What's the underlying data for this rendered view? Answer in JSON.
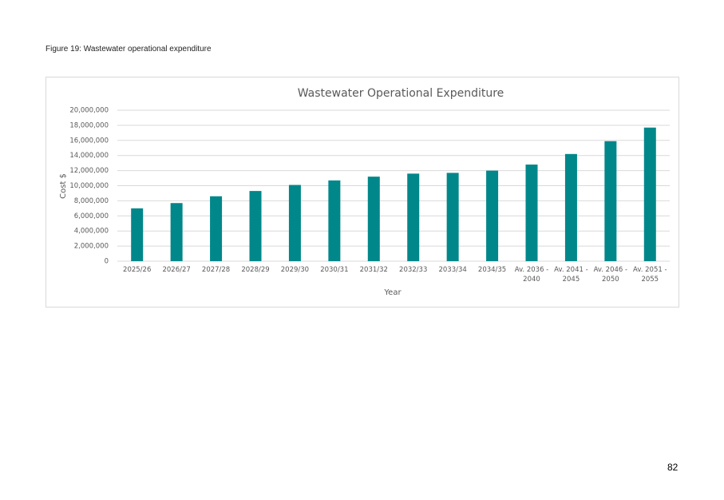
{
  "caption": "Figure 19: Wastewater operational expenditure",
  "page_number": "82",
  "chart_data": {
    "type": "bar",
    "title": "Wastewater Operational Expenditure",
    "x_label": "Year",
    "y_label": "Cost $",
    "categories": [
      "2025/26",
      "2026/27",
      "2027/28",
      "2028/29",
      "2029/30",
      "2030/31",
      "2031/32",
      "2032/33",
      "2033/34",
      "2034/35",
      "Av. 2036 - 2040",
      "Av. 2041 - 2045",
      "Av. 2046 - 2050",
      "Av. 2051 - 2055"
    ],
    "values": [
      7000000,
      7700000,
      8600000,
      9300000,
      10100000,
      10700000,
      11200000,
      11600000,
      11700000,
      12000000,
      12800000,
      14200000,
      15900000,
      17700000
    ],
    "color": "#00878a",
    "ylim": [
      0,
      20000000
    ],
    "yticks": [
      0,
      {
        "value": 2000000,
        "label": "2,000,000"
      },
      {
        "value": 4000000,
        "label": "4,000,000"
      },
      {
        "value": 6000000,
        "label": "6,000,000"
      },
      {
        "value": 8000000,
        "label": "8,000,000"
      },
      {
        "value": 10000000,
        "label": "10,000,000"
      },
      {
        "value": 12000000,
        "label": "12,000,000"
      },
      {
        "value": 14000000,
        "label": "14,000,000"
      },
      {
        "value": 16000000,
        "label": "16,000,000"
      },
      {
        "value": 18000000,
        "label": "18,000,000"
      },
      {
        "value": 20000000,
        "label": "20,000,000"
      }
    ],
    "grid": true
  }
}
